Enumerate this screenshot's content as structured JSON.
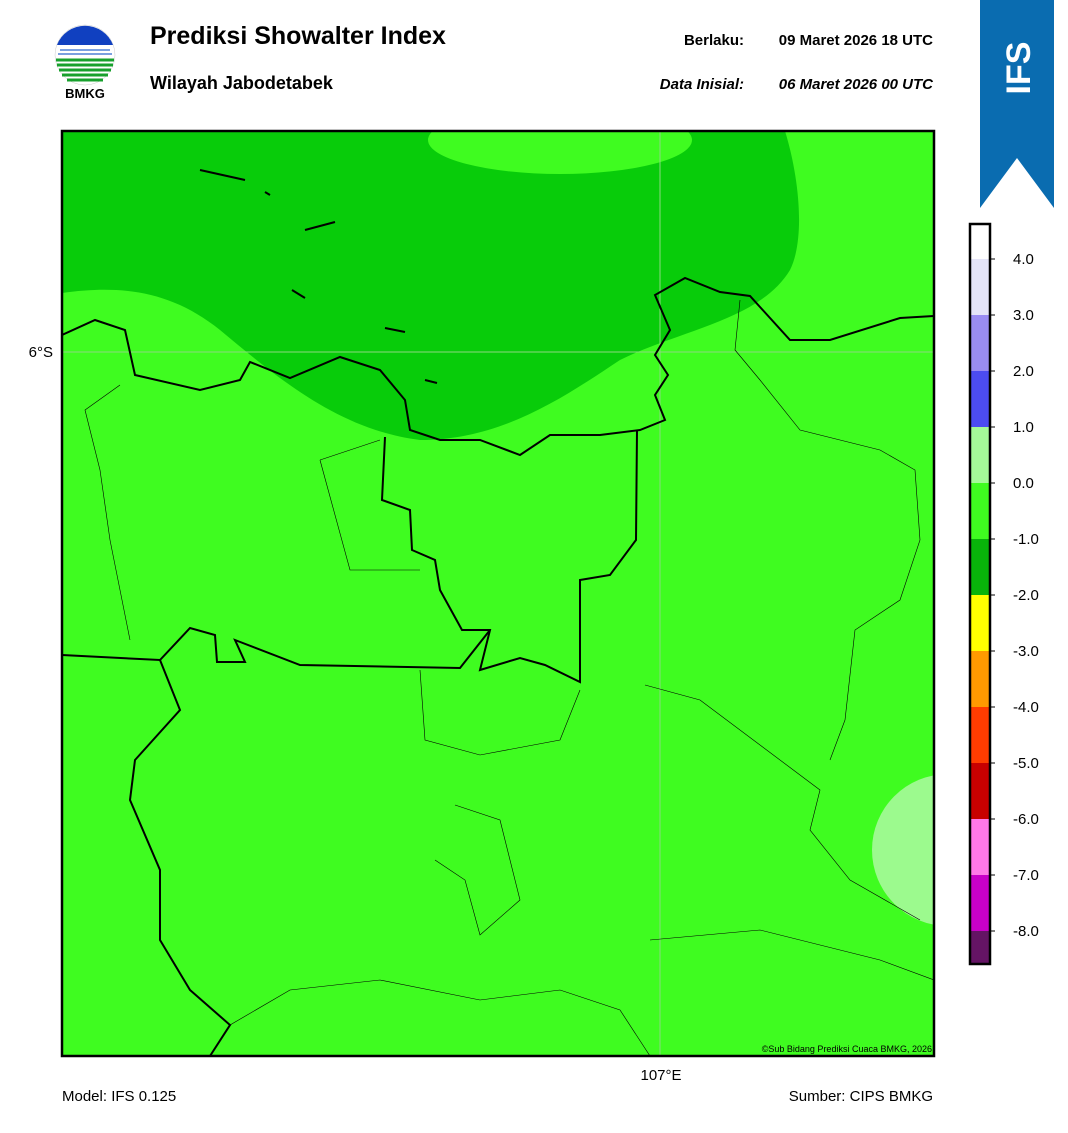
{
  "header": {
    "title": "Prediksi Showalter Index",
    "subtitle": "Wilayah Jabodetabek",
    "logo_text": "BMKG",
    "valid_label": "Berlaku:",
    "valid_time": "09 Maret 2026 18 UTC",
    "init_label": "Data Inisial:",
    "init_time": "06 Maret 2026 00 UTC",
    "model_badge": "IFS"
  },
  "map": {
    "lat_label": "6°S",
    "lon_label": "107°E",
    "credit": "©Sub Bidang Prediksi Cuaca BMKG, 2026"
  },
  "colorbar": {
    "ticks": [
      "4.0",
      "3.0",
      "2.0",
      "1.0",
      "0.0",
      "-1.0",
      "-2.0",
      "-3.0",
      "-4.0",
      "-5.0",
      "-6.0",
      "-7.0",
      "-8.0"
    ],
    "colors": [
      "#ffffff",
      "#e4e4f8",
      "#9a8cf2",
      "#4c4cf2",
      "#a4fa98",
      "#3ffc20",
      "#08b30a",
      "#ffff00",
      "#ff9a00",
      "#ff3c00",
      "#c80000",
      "#ff78e8",
      "#c800c8",
      "#641464"
    ]
  },
  "footer": {
    "model": "Model: IFS 0.125",
    "source": "Sumber: CIPS BMKG"
  }
}
